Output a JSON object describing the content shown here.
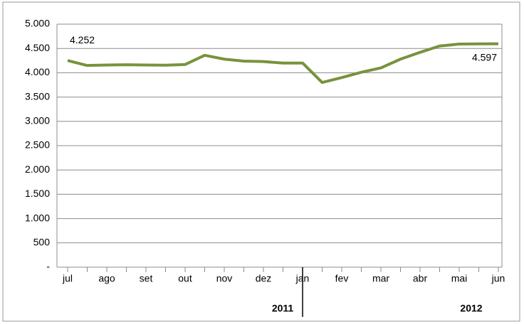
{
  "chart_data": {
    "type": "line",
    "categories": [
      "jul",
      null,
      "ago",
      null,
      "set",
      null,
      "out",
      null,
      "nov",
      null,
      "dez",
      null,
      "jan",
      null,
      "fev",
      null,
      "mar",
      null,
      "abr",
      null,
      "mai",
      null,
      "jun"
    ],
    "series": [
      {
        "color": "#77933c",
        "values": [
          4252,
          4150,
          4160,
          4165,
          4160,
          4155,
          4170,
          4360,
          4280,
          4240,
          4230,
          4200,
          4200,
          3800,
          3900,
          4010,
          4100,
          4280,
          4420,
          4550,
          4590,
          4595,
          4597
        ],
        "value_labels": [
          "4.252",
          null,
          null,
          null,
          null,
          null,
          null,
          null,
          null,
          null,
          null,
          null,
          null,
          null,
          null,
          null,
          null,
          null,
          null,
          null,
          null,
          null,
          "4.597"
        ]
      }
    ],
    "ylim": [
      0,
      5000
    ],
    "yticks": [
      {
        "value": 0,
        "label": "-"
      },
      500,
      {
        "value": 1000,
        "label": "1.000"
      },
      {
        "value": 1500,
        "label": "1.500"
      },
      {
        "value": 2000,
        "label": "2.000"
      },
      {
        "value": 2500,
        "label": "2.500"
      },
      {
        "value": 3000,
        "label": "3.000"
      },
      {
        "value": 3500,
        "label": "3.500"
      },
      {
        "value": 4000,
        "label": "4.000"
      },
      {
        "value": 4500,
        "label": "4.500"
      },
      {
        "value": 5000,
        "label": "5.000"
      }
    ],
    "grid": true,
    "x_group_labels": [
      "2011",
      "2012"
    ]
  }
}
